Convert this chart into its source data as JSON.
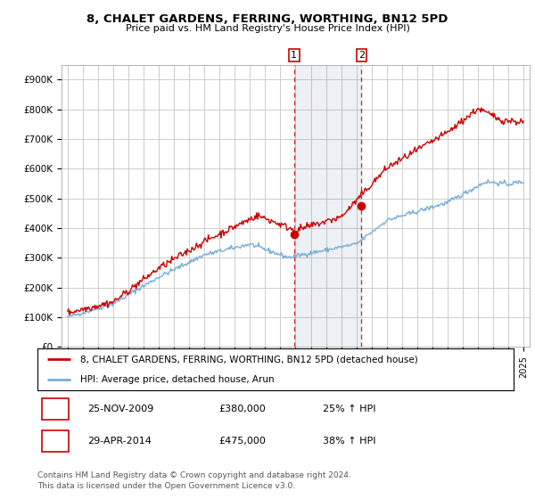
{
  "title_line1": "8, CHALET GARDENS, FERRING, WORTHING, BN12 5PD",
  "title_line2": "Price paid vs. HM Land Registry's House Price Index (HPI)",
  "ylim": [
    0,
    950000
  ],
  "yticks": [
    0,
    100000,
    200000,
    300000,
    400000,
    500000,
    600000,
    700000,
    800000,
    900000
  ],
  "ytick_labels": [
    "£0",
    "£100K",
    "£200K",
    "£300K",
    "£400K",
    "£500K",
    "£600K",
    "£700K",
    "£800K",
    "£900K"
  ],
  "red_color": "#cc0000",
  "blue_color": "#7aaed6",
  "background_color": "#ffffff",
  "grid_color": "#cccccc",
  "legend_label_red": "8, CHALET GARDENS, FERRING, WORTHING, BN12 5PD (detached house)",
  "legend_label_blue": "HPI: Average price, detached house, Arun",
  "sale1_date": 2009.9,
  "sale1_price": 380000,
  "sale1_label": "1",
  "sale2_date": 2014.33,
  "sale2_price": 475000,
  "sale2_label": "2",
  "footnote": "Contains HM Land Registry data © Crown copyright and database right 2024.\nThis data is licensed under the Open Government Licence v3.0.",
  "table_entries": [
    {
      "num": "1",
      "date": "25-NOV-2009",
      "price": "£380,000",
      "change": "25% ↑ HPI"
    },
    {
      "num": "2",
      "date": "29-APR-2014",
      "price": "£475,000",
      "change": "38% ↑ HPI"
    }
  ],
  "highlight_xmin": 2009.9,
  "highlight_xmax": 2014.33,
  "xlim_left": 1994.6,
  "xlim_right": 2025.4
}
